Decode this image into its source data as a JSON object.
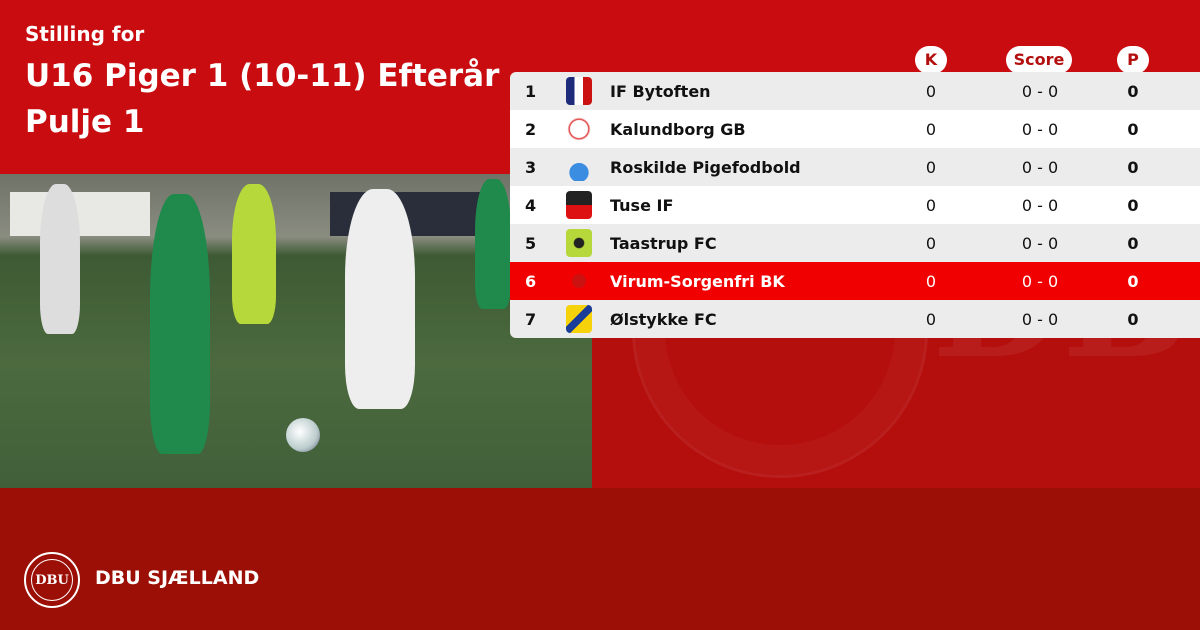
{
  "header": {
    "subtitle": "Stilling for",
    "title_line1": "U16 Piger 1 (10-11) Efterår",
    "title_line2": "Pulje 1"
  },
  "columns": {
    "k": "K",
    "score": "Score",
    "p": "P"
  },
  "colors": {
    "top_red": "#c80c0f",
    "bottom_red": "#9c0f06",
    "highlight": "#f00000"
  },
  "rows": [
    {
      "pos": "1",
      "team": "IF Bytoften",
      "k": "0",
      "score": "0 - 0",
      "p": "0",
      "logo": "shield-blue-red"
    },
    {
      "pos": "2",
      "team": "Kalundborg GB",
      "k": "0",
      "score": "0 - 0",
      "p": "0",
      "logo": "round-red-white"
    },
    {
      "pos": "3",
      "team": "Roskilde Pigefodbold",
      "k": "0",
      "score": "0 - 0",
      "p": "0",
      "logo": "blue-flame"
    },
    {
      "pos": "4",
      "team": "Tuse IF",
      "k": "0",
      "score": "0 - 0",
      "p": "0",
      "logo": "black-red-shield"
    },
    {
      "pos": "5",
      "team": "Taastrup FC",
      "k": "0",
      "score": "0 - 0",
      "p": "0",
      "logo": "green-clover"
    },
    {
      "pos": "6",
      "team": "Virum-Sorgenfri BK",
      "k": "0",
      "score": "0 - 0",
      "p": "0",
      "logo": "red-ball",
      "highlighted": true
    },
    {
      "pos": "7",
      "team": "Ølstykke FC",
      "k": "0",
      "score": "0 - 0",
      "p": "0",
      "logo": "yellow-blue-shield"
    }
  ],
  "footer": {
    "brand": "DBU SJÆLLAND",
    "logo_text": "DBU"
  }
}
